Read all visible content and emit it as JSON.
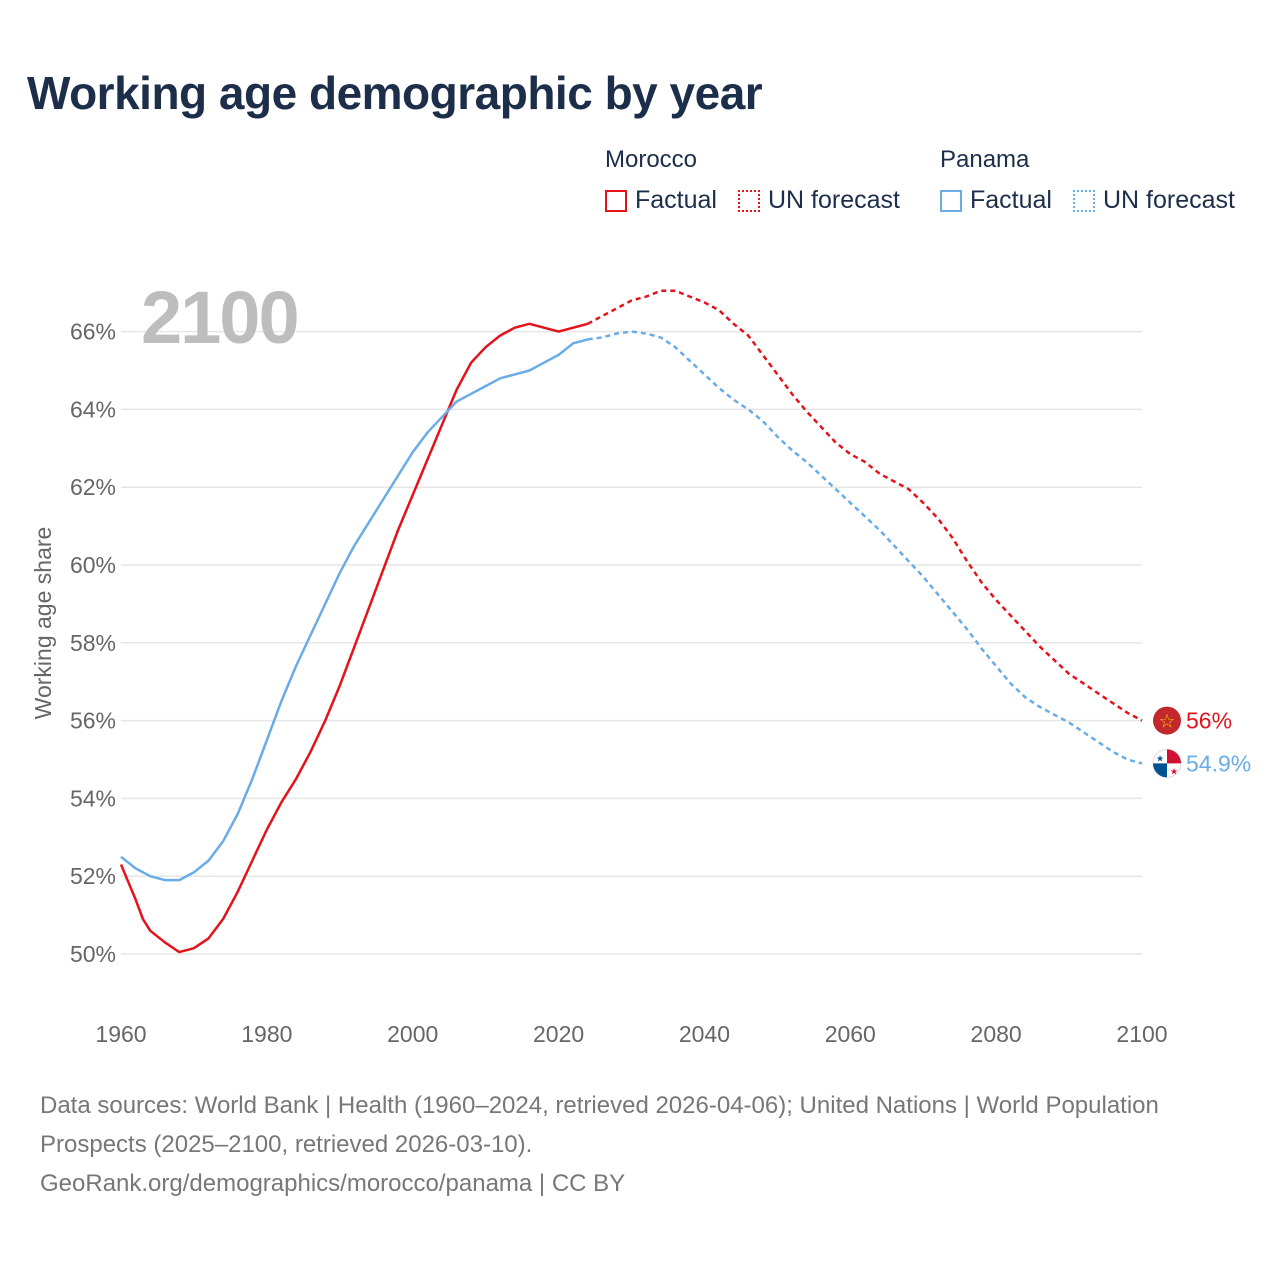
{
  "title": "Working age demographic by year",
  "legend": {
    "morocco": {
      "name": "Morocco",
      "factual": "Factual",
      "forecast": "UN forecast"
    },
    "panama": {
      "name": "Panama",
      "factual": "Factual",
      "forecast": "UN forecast"
    }
  },
  "colors": {
    "morocco": "#e3131b",
    "panama": "#6aace6",
    "grid": "#e6e6e6",
    "axis_text": "#666666",
    "year_overlay": "#bdbdbd"
  },
  "chart_data": {
    "type": "line",
    "xlabel": "",
    "ylabel": "Working age share",
    "xlim": [
      1960,
      2100
    ],
    "ylim": [
      49,
      67.5
    ],
    "x_ticks": [
      1960,
      1980,
      2000,
      2020,
      2040,
      2060,
      2080,
      2100
    ],
    "x_tick_labels": [
      "1960",
      "1980",
      "2000",
      "2020",
      "2040",
      "2060",
      "2080",
      "2100"
    ],
    "y_ticks": [
      50,
      52,
      54,
      56,
      58,
      60,
      62,
      64,
      66
    ],
    "y_tick_labels": [
      "50%",
      "52%",
      "54%",
      "56%",
      "58%",
      "60%",
      "62%",
      "64%",
      "66%"
    ],
    "year_overlay": "2100",
    "forecast_start": 2024,
    "series": [
      {
        "name": "Morocco",
        "end_label": "56%",
        "points": [
          [
            1960,
            52.3
          ],
          [
            1962,
            51.4
          ],
          [
            1963,
            50.9
          ],
          [
            1964,
            50.6
          ],
          [
            1966,
            50.3
          ],
          [
            1968,
            50.05
          ],
          [
            1970,
            50.15
          ],
          [
            1972,
            50.4
          ],
          [
            1974,
            50.9
          ],
          [
            1976,
            51.6
          ],
          [
            1978,
            52.4
          ],
          [
            1980,
            53.2
          ],
          [
            1982,
            53.9
          ],
          [
            1984,
            54.5
          ],
          [
            1986,
            55.2
          ],
          [
            1988,
            56.0
          ],
          [
            1990,
            56.9
          ],
          [
            1992,
            57.9
          ],
          [
            1994,
            58.9
          ],
          [
            1996,
            59.9
          ],
          [
            1998,
            60.9
          ],
          [
            2000,
            61.8
          ],
          [
            2002,
            62.7
          ],
          [
            2004,
            63.6
          ],
          [
            2006,
            64.5
          ],
          [
            2008,
            65.2
          ],
          [
            2010,
            65.6
          ],
          [
            2012,
            65.9
          ],
          [
            2014,
            66.1
          ],
          [
            2016,
            66.2
          ],
          [
            2018,
            66.1
          ],
          [
            2020,
            66.0
          ],
          [
            2022,
            66.1
          ],
          [
            2024,
            66.2
          ],
          [
            2026,
            66.4
          ],
          [
            2028,
            66.6
          ],
          [
            2030,
            66.8
          ],
          [
            2032,
            66.9
          ],
          [
            2034,
            67.05
          ],
          [
            2036,
            67.05
          ],
          [
            2038,
            66.9
          ],
          [
            2040,
            66.75
          ],
          [
            2042,
            66.55
          ],
          [
            2044,
            66.2
          ],
          [
            2046,
            65.9
          ],
          [
            2048,
            65.4
          ],
          [
            2050,
            64.9
          ],
          [
            2052,
            64.4
          ],
          [
            2054,
            63.95
          ],
          [
            2056,
            63.55
          ],
          [
            2058,
            63.15
          ],
          [
            2060,
            62.85
          ],
          [
            2062,
            62.65
          ],
          [
            2064,
            62.35
          ],
          [
            2066,
            62.15
          ],
          [
            2068,
            61.95
          ],
          [
            2070,
            61.6
          ],
          [
            2072,
            61.2
          ],
          [
            2074,
            60.7
          ],
          [
            2076,
            60.1
          ],
          [
            2078,
            59.55
          ],
          [
            2080,
            59.1
          ],
          [
            2082,
            58.7
          ],
          [
            2084,
            58.3
          ],
          [
            2086,
            57.9
          ],
          [
            2088,
            57.55
          ],
          [
            2090,
            57.2
          ],
          [
            2092,
            56.95
          ],
          [
            2094,
            56.7
          ],
          [
            2096,
            56.45
          ],
          [
            2098,
            56.2
          ],
          [
            2100,
            56.0
          ]
        ]
      },
      {
        "name": "Panama",
        "end_label": "54.9%",
        "points": [
          [
            1960,
            52.5
          ],
          [
            1962,
            52.2
          ],
          [
            1964,
            52.0
          ],
          [
            1966,
            51.9
          ],
          [
            1968,
            51.9
          ],
          [
            1970,
            52.1
          ],
          [
            1972,
            52.4
          ],
          [
            1974,
            52.9
          ],
          [
            1976,
            53.6
          ],
          [
            1978,
            54.5
          ],
          [
            1980,
            55.5
          ],
          [
            1982,
            56.5
          ],
          [
            1984,
            57.4
          ],
          [
            1986,
            58.2
          ],
          [
            1988,
            59.0
          ],
          [
            1990,
            59.8
          ],
          [
            1992,
            60.5
          ],
          [
            1994,
            61.1
          ],
          [
            1996,
            61.7
          ],
          [
            1998,
            62.3
          ],
          [
            2000,
            62.9
          ],
          [
            2002,
            63.4
          ],
          [
            2004,
            63.8
          ],
          [
            2006,
            64.2
          ],
          [
            2008,
            64.4
          ],
          [
            2010,
            64.6
          ],
          [
            2012,
            64.8
          ],
          [
            2014,
            64.9
          ],
          [
            2016,
            65.0
          ],
          [
            2018,
            65.2
          ],
          [
            2020,
            65.4
          ],
          [
            2022,
            65.7
          ],
          [
            2024,
            65.8
          ],
          [
            2026,
            65.85
          ],
          [
            2028,
            65.95
          ],
          [
            2030,
            66.0
          ],
          [
            2032,
            65.95
          ],
          [
            2034,
            65.85
          ],
          [
            2036,
            65.6
          ],
          [
            2038,
            65.25
          ],
          [
            2040,
            64.9
          ],
          [
            2042,
            64.55
          ],
          [
            2044,
            64.25
          ],
          [
            2046,
            64.0
          ],
          [
            2048,
            63.7
          ],
          [
            2050,
            63.3
          ],
          [
            2052,
            62.95
          ],
          [
            2054,
            62.65
          ],
          [
            2056,
            62.3
          ],
          [
            2058,
            61.95
          ],
          [
            2060,
            61.6
          ],
          [
            2062,
            61.25
          ],
          [
            2064,
            60.9
          ],
          [
            2066,
            60.5
          ],
          [
            2068,
            60.1
          ],
          [
            2070,
            59.7
          ],
          [
            2072,
            59.25
          ],
          [
            2074,
            58.8
          ],
          [
            2076,
            58.35
          ],
          [
            2078,
            57.85
          ],
          [
            2080,
            57.4
          ],
          [
            2082,
            56.95
          ],
          [
            2084,
            56.6
          ],
          [
            2086,
            56.35
          ],
          [
            2088,
            56.15
          ],
          [
            2090,
            55.95
          ],
          [
            2092,
            55.7
          ],
          [
            2094,
            55.45
          ],
          [
            2096,
            55.2
          ],
          [
            2098,
            55.0
          ],
          [
            2100,
            54.9
          ]
        ]
      }
    ]
  },
  "footer": {
    "line1": "Data sources: World Bank | Health (1960–2024, retrieved 2026-04-06); United Nations | World Population Prospects (2025–2100, retrieved 2026-03-10).",
    "line2": "GeoRank.org/demographics/morocco/panama | CC BY"
  }
}
